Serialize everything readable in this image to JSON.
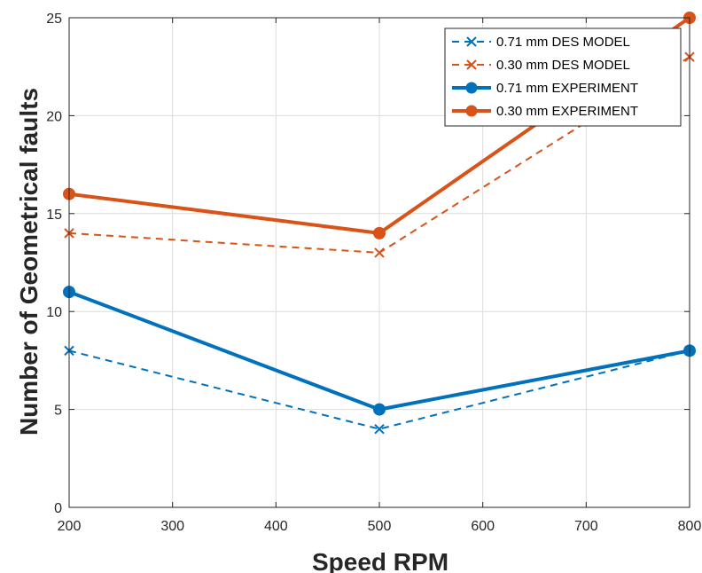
{
  "chart_data": {
    "type": "line",
    "title": "",
    "xlabel": "Speed RPM",
    "ylabel": "Number of Geometrical faults",
    "xlim": [
      200,
      800
    ],
    "ylim": [
      0,
      25
    ],
    "xticks": [
      200,
      300,
      400,
      500,
      600,
      700,
      800
    ],
    "yticks": [
      0,
      5,
      10,
      15,
      20,
      25
    ],
    "grid": true,
    "legend_position": "top-right",
    "x": [
      200,
      500,
      800
    ],
    "series": [
      {
        "name": "0.71 mm DES MODEL",
        "values": [
          8,
          4,
          8
        ],
        "color": "#0072BD",
        "style": "dashed",
        "marker": "x"
      },
      {
        "name": "0.30 mm DES MODEL",
        "values": [
          14,
          13,
          23
        ],
        "color": "#D95319",
        "style": "dashed",
        "marker": "x"
      },
      {
        "name": "0.71 mm EXPERIMENT",
        "values": [
          11,
          5,
          8
        ],
        "color": "#0072BD",
        "style": "solid",
        "marker": "circle"
      },
      {
        "name": "0.30 mm EXPERIMENT",
        "values": [
          16,
          14,
          25
        ],
        "color": "#D95319",
        "style": "solid",
        "marker": "circle"
      }
    ]
  }
}
